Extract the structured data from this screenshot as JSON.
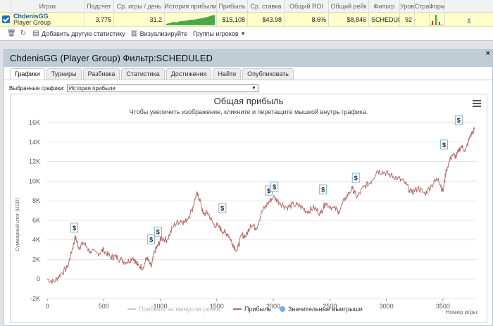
{
  "table": {
    "headers": [
      "Игрок",
      "Подсчет",
      "Ср. игры / день",
      "История прибыли",
      "Прибыль",
      "Ср. ставка",
      "Общий ROI",
      "Общий рейк",
      "Фильтр",
      "Уров",
      "Стра",
      "Форм"
    ],
    "row": {
      "player_name": "ChdenisGG",
      "player_group": "Player Group",
      "count": "3,775",
      "avg_games_day": "31.2",
      "profit": "$15,108",
      "avg_stake": "$43.98",
      "roi": "8.6%",
      "rake": "$8,846",
      "filter": "SCHEDULE",
      "level": "92",
      "remove": "x"
    }
  },
  "toolbar": {
    "add_stats": "Добавить другую статистику",
    "visualize": "Визуализируйте",
    "player_groups": "Группы игроков"
  },
  "panel": {
    "title": "ChdenisGG (Player Group) Фильтр:SCHEDULED",
    "close": "×",
    "tabs": [
      "Графики",
      "Турниры",
      "Разбивка",
      "Статистика",
      "Достижения",
      "Найти",
      "Опубликовать"
    ],
    "select_label": "Выбранные графики:",
    "select_value": "История прибыли"
  },
  "chart_data": {
    "type": "line",
    "title": "Общая прибыль",
    "subtitle": "Чтобы увеличить изображение, кликните и перетащите мышкой внутрь графика.",
    "ylabel": "Суммарный итог (USD)",
    "xlabel": "Номер игры",
    "ylim": [
      -2000,
      16000
    ],
    "xlim": [
      0,
      3800
    ],
    "yticks": [
      "-2K",
      "0",
      "2K",
      "4K",
      "6K",
      "8K",
      "10K",
      "12K",
      "14K",
      "16K"
    ],
    "xticks": [
      "0",
      "500",
      "1000",
      "1500",
      "2000",
      "2500",
      "3000",
      "3500"
    ],
    "series": [
      {
        "name": "Прибыль за минусом рейка",
        "color": "#cccccc",
        "visible": false
      },
      {
        "name": "Прибыль",
        "color": "#b86a6a",
        "x": [
          0,
          60,
          120,
          180,
          220,
          250,
          280,
          320,
          380,
          450,
          500,
          560,
          600,
          650,
          700,
          760,
          800,
          850,
          880,
          920,
          950,
          980,
          1010,
          1060,
          1120,
          1180,
          1220,
          1280,
          1320,
          1350,
          1380,
          1420,
          1470,
          1520,
          1560,
          1600,
          1640,
          1680,
          1720,
          1760,
          1800,
          1850,
          1900,
          1950,
          2000,
          2060,
          2120,
          2180,
          2240,
          2300,
          2360,
          2420,
          2460,
          2520,
          2580,
          2640,
          2700,
          2740,
          2800,
          2860,
          2920,
          2980,
          3040,
          3100,
          3160,
          3220,
          3280,
          3340,
          3400,
          3460,
          3500,
          3530,
          3580,
          3620,
          3660,
          3700,
          3740,
          3780
        ],
        "values": [
          0,
          -300,
          500,
          1200,
          3000,
          4300,
          3200,
          3700,
          2800,
          2600,
          3000,
          2200,
          2300,
          2000,
          1700,
          2200,
          1400,
          1200,
          2200,
          1200,
          2800,
          3400,
          4200,
          4000,
          5500,
          6000,
          5800,
          7000,
          8700,
          8200,
          6600,
          6800,
          5600,
          5300,
          4800,
          4600,
          3600,
          2900,
          4500,
          4400,
          5600,
          5200,
          6900,
          7700,
          8400,
          7800,
          7300,
          7600,
          7400,
          6900,
          7300,
          6700,
          7800,
          7300,
          6900,
          8300,
          9300,
          8300,
          9400,
          9900,
          11100,
          10900,
          10600,
          10300,
          9900,
          8800,
          9300,
          8700,
          9600,
          10300,
          8900,
          11200,
          12700,
          12500,
          13600,
          13100,
          14600,
          15300
        ]
      },
      {
        "name": "Значительные выигрыши",
        "color": "#7ab0e0"
      }
    ],
    "markers": [
      {
        "x": 240,
        "y": 4200,
        "label": "$"
      },
      {
        "x": 920,
        "y": 3000,
        "label": "$"
      },
      {
        "x": 980,
        "y": 3800,
        "label": "$"
      },
      {
        "x": 1550,
        "y": 6200,
        "label": "$"
      },
      {
        "x": 1960,
        "y": 8000,
        "label": "$"
      },
      {
        "x": 2010,
        "y": 8400,
        "label": "$"
      },
      {
        "x": 2440,
        "y": 8100,
        "label": "$"
      },
      {
        "x": 2730,
        "y": 9300,
        "label": "$"
      },
      {
        "x": 3510,
        "y": 12700,
        "label": "$"
      },
      {
        "x": 3640,
        "y": 15200,
        "label": "$"
      }
    ]
  }
}
